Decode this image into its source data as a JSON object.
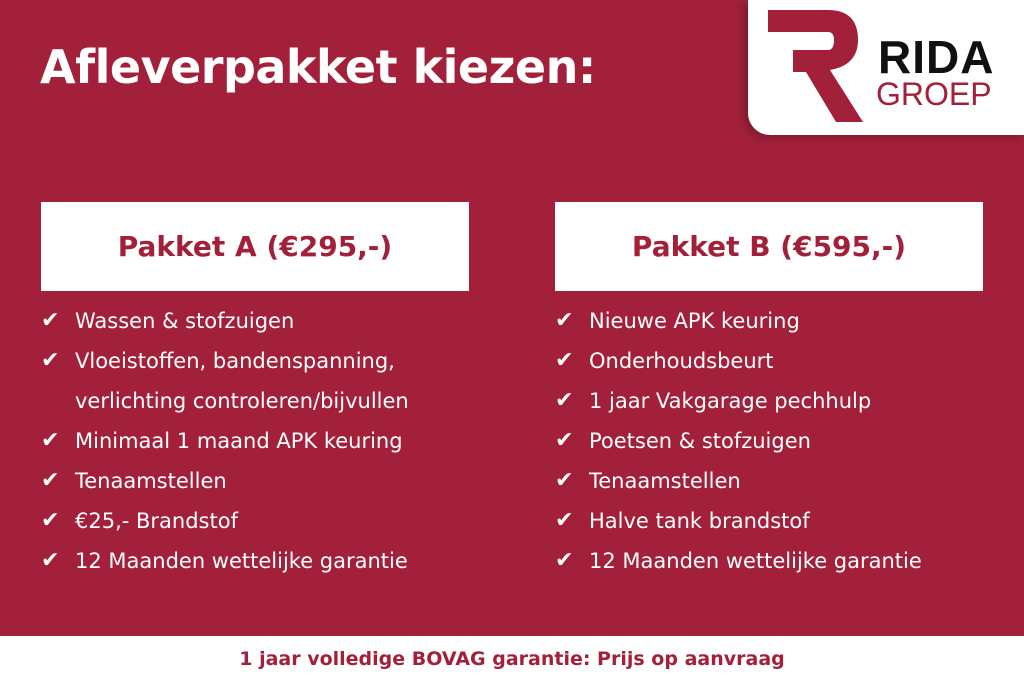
{
  "title": "Afleverpakket kiezen:",
  "logo": {
    "line1": "RIDA",
    "line2": "GROEP"
  },
  "colors": {
    "background": "#a3203a",
    "accent": "#a3203a",
    "box": "#ffffff"
  },
  "check_icon": "✔",
  "packages": [
    {
      "title": "Pakket A (€295,-)",
      "items": [
        "Wassen & stofzuigen",
        "Vloeistoffen, bandenspanning, verlichting controleren/bijvullen",
        "Minimaal 1 maand APK keuring",
        "Tenaamstellen",
        "€25,- Brandstof",
        "12 Maanden wettelijke garantie"
      ]
    },
    {
      "title": "Pakket B (€595,-)",
      "items": [
        "Nieuwe APK keuring",
        "Onderhoudsbeurt",
        "1 jaar Vakgarage pechhulp",
        "Poetsen & stofzuigen",
        "Tenaamstellen",
        "Halve tank brandstof",
        "12 Maanden wettelijke garantie"
      ]
    }
  ],
  "footer": "1 jaar volledige BOVAG garantie: Prijs op aanvraag"
}
